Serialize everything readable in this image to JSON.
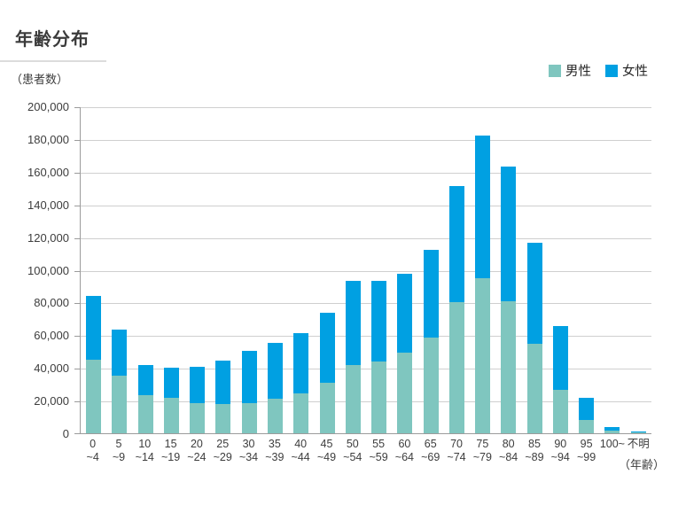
{
  "page": {
    "title": "年齢分布"
  },
  "chart_data": {
    "type": "bar",
    "stacked": true,
    "title": "年齢分布",
    "ylabel": "（患者数）",
    "xlabel": "（年齢）",
    "ylim": [
      0,
      200000
    ],
    "ytick_step": 20000,
    "grid": true,
    "legend_position": "top-right",
    "categories": [
      "0~4",
      "5~9",
      "10~14",
      "15~19",
      "20~24",
      "25~29",
      "30~34",
      "35~39",
      "40~44",
      "45~49",
      "50~54",
      "55~59",
      "60~64",
      "65~69",
      "70~74",
      "75~79",
      "80~84",
      "85~89",
      "90~94",
      "95~99",
      "100~",
      "不明"
    ],
    "series": [
      {
        "name": "男性",
        "color": "#7fc6bf",
        "values": [
          45000,
          35500,
          23500,
          21500,
          18500,
          18000,
          18500,
          21000,
          24500,
          31000,
          42000,
          44000,
          49500,
          58500,
          80000,
          95000,
          81000,
          54500,
          26500,
          8000,
          1500,
          700
        ]
      },
      {
        "name": "女性",
        "color": "#00a0e2",
        "values": [
          39000,
          28000,
          18500,
          18500,
          22000,
          26500,
          32000,
          34500,
          36500,
          42500,
          51000,
          49000,
          48000,
          53500,
          71000,
          87000,
          82000,
          62000,
          39000,
          13500,
          2500,
          300
        ]
      }
    ]
  }
}
